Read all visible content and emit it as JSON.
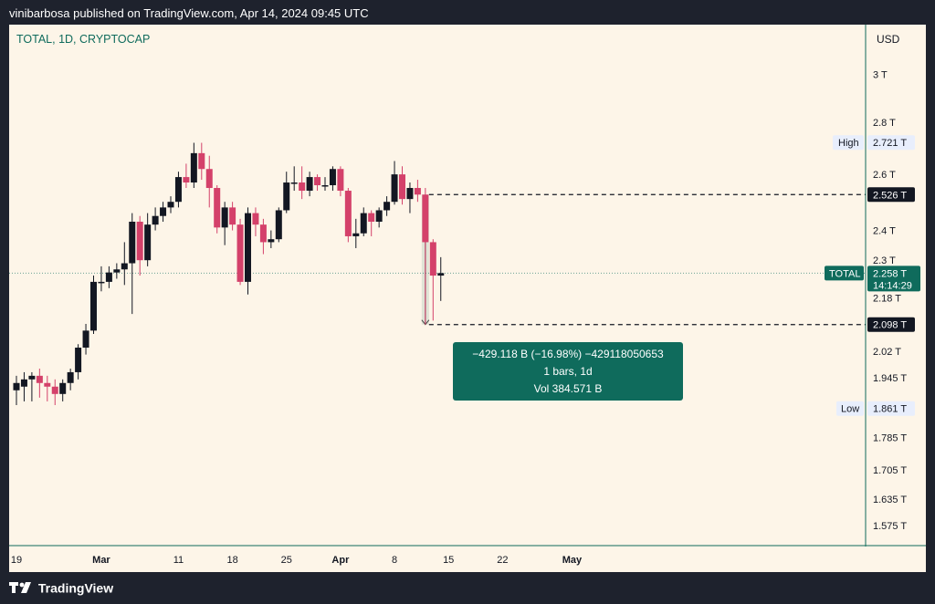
{
  "header": {
    "text": "vinibarbosa published on TradingView.com, Apr 14, 2024 09:45 UTC"
  },
  "symbol": {
    "label": "TOTAL, 1D, CRYPTOCAP"
  },
  "price_axis": {
    "currency": "USD"
  },
  "footer": {
    "brand": "TradingView"
  },
  "colors": {
    "up": "#131722",
    "down": "#d4416a",
    "background": "#fdf5e8",
    "accent": "#0f6b5c",
    "frame": "#1e222d"
  },
  "chart_data": {
    "type": "candlestick",
    "title": "TOTAL, 1D, CRYPTOCAP",
    "y_scale": "log",
    "ylim": [
      1.53,
      3.22
    ],
    "y_ticks": [
      {
        "v": 3.0,
        "label": "3 T"
      },
      {
        "v": 2.8,
        "label": "2.8 T"
      },
      {
        "v": 2.6,
        "label": "2.6 T"
      },
      {
        "v": 2.4,
        "label": "2.4 T"
      },
      {
        "v": 2.3,
        "label": "2.3 T"
      },
      {
        "v": 2.18,
        "label": "2.18 T"
      },
      {
        "v": 2.02,
        "label": "2.02 T"
      },
      {
        "v": 1.945,
        "label": "1.945 T"
      },
      {
        "v": 1.785,
        "label": "1.785 T"
      },
      {
        "v": 1.705,
        "label": "1.705 T"
      },
      {
        "v": 1.635,
        "label": "1.635 T"
      },
      {
        "v": 1.575,
        "label": "1.575 T"
      }
    ],
    "x_start": "2024-02-19",
    "x_ticks": [
      {
        "date": "2024-02-19",
        "label": "19"
      },
      {
        "date": "2024-03-01",
        "label": "Mar"
      },
      {
        "date": "2024-03-11",
        "label": "11"
      },
      {
        "date": "2024-03-18",
        "label": "18"
      },
      {
        "date": "2024-03-25",
        "label": "25"
      },
      {
        "date": "2024-04-01",
        "label": "Apr"
      },
      {
        "date": "2024-04-08",
        "label": "8"
      },
      {
        "date": "2024-04-15",
        "label": "15"
      },
      {
        "date": "2024-04-22",
        "label": "22"
      },
      {
        "date": "2024-05-01",
        "label": "May"
      }
    ],
    "candles": [
      {
        "date": "2024-02-19",
        "o": 1.91,
        "h": 1.95,
        "l": 1.87,
        "c": 1.93
      },
      {
        "date": "2024-02-20",
        "o": 1.92,
        "h": 1.96,
        "l": 1.88,
        "c": 1.94
      },
      {
        "date": "2024-02-21",
        "o": 1.94,
        "h": 1.96,
        "l": 1.88,
        "c": 1.95
      },
      {
        "date": "2024-02-22",
        "o": 1.95,
        "h": 1.97,
        "l": 1.89,
        "c": 1.93
      },
      {
        "date": "2024-02-23",
        "o": 1.93,
        "h": 1.95,
        "l": 1.88,
        "c": 1.92
      },
      {
        "date": "2024-02-24",
        "o": 1.92,
        "h": 1.94,
        "l": 1.87,
        "c": 1.9
      },
      {
        "date": "2024-02-25",
        "o": 1.9,
        "h": 1.94,
        "l": 1.88,
        "c": 1.93
      },
      {
        "date": "2024-02-26",
        "o": 1.93,
        "h": 1.97,
        "l": 1.91,
        "c": 1.96
      },
      {
        "date": "2024-02-27",
        "o": 1.96,
        "h": 2.04,
        "l": 1.94,
        "c": 2.03
      },
      {
        "date": "2024-02-28",
        "o": 2.03,
        "h": 2.1,
        "l": 2.01,
        "c": 2.08
      },
      {
        "date": "2024-02-29",
        "o": 2.08,
        "h": 2.25,
        "l": 2.07,
        "c": 2.23
      },
      {
        "date": "2024-03-01",
        "o": 2.23,
        "h": 2.28,
        "l": 2.2,
        "c": 2.23
      },
      {
        "date": "2024-03-02",
        "o": 2.23,
        "h": 2.28,
        "l": 2.21,
        "c": 2.26
      },
      {
        "date": "2024-03-03",
        "o": 2.26,
        "h": 2.29,
        "l": 2.24,
        "c": 2.27
      },
      {
        "date": "2024-03-04",
        "o": 2.27,
        "h": 2.36,
        "l": 2.22,
        "c": 2.29
      },
      {
        "date": "2024-03-05",
        "o": 2.29,
        "h": 2.46,
        "l": 2.13,
        "c": 2.43
      },
      {
        "date": "2024-03-06",
        "o": 2.43,
        "h": 2.45,
        "l": 2.25,
        "c": 2.3
      },
      {
        "date": "2024-03-07",
        "o": 2.3,
        "h": 2.46,
        "l": 2.28,
        "c": 2.42
      },
      {
        "date": "2024-03-08",
        "o": 2.42,
        "h": 2.48,
        "l": 2.4,
        "c": 2.45
      },
      {
        "date": "2024-03-09",
        "o": 2.45,
        "h": 2.5,
        "l": 2.43,
        "c": 2.48
      },
      {
        "date": "2024-03-10",
        "o": 2.48,
        "h": 2.52,
        "l": 2.46,
        "c": 2.5
      },
      {
        "date": "2024-03-11",
        "o": 2.5,
        "h": 2.61,
        "l": 2.48,
        "c": 2.59
      },
      {
        "date": "2024-03-12",
        "o": 2.59,
        "h": 2.64,
        "l": 2.55,
        "c": 2.57
      },
      {
        "date": "2024-03-13",
        "o": 2.57,
        "h": 2.72,
        "l": 2.55,
        "c": 2.68
      },
      {
        "date": "2024-03-14",
        "o": 2.68,
        "h": 2.72,
        "l": 2.58,
        "c": 2.62
      },
      {
        "date": "2024-03-15",
        "o": 2.62,
        "h": 2.67,
        "l": 2.48,
        "c": 2.55
      },
      {
        "date": "2024-03-16",
        "o": 2.55,
        "h": 2.56,
        "l": 2.39,
        "c": 2.41
      },
      {
        "date": "2024-03-17",
        "o": 2.41,
        "h": 2.5,
        "l": 2.35,
        "c": 2.48
      },
      {
        "date": "2024-03-18",
        "o": 2.48,
        "h": 2.5,
        "l": 2.4,
        "c": 2.42
      },
      {
        "date": "2024-03-19",
        "o": 2.42,
        "h": 2.44,
        "l": 2.22,
        "c": 2.23
      },
      {
        "date": "2024-03-20",
        "o": 2.23,
        "h": 2.48,
        "l": 2.19,
        "c": 2.46
      },
      {
        "date": "2024-03-21",
        "o": 2.46,
        "h": 2.48,
        "l": 2.38,
        "c": 2.42
      },
      {
        "date": "2024-03-22",
        "o": 2.42,
        "h": 2.44,
        "l": 2.32,
        "c": 2.36
      },
      {
        "date": "2024-03-23",
        "o": 2.36,
        "h": 2.4,
        "l": 2.34,
        "c": 2.37
      },
      {
        "date": "2024-03-24",
        "o": 2.37,
        "h": 2.48,
        "l": 2.36,
        "c": 2.47
      },
      {
        "date": "2024-03-25",
        "o": 2.47,
        "h": 2.61,
        "l": 2.46,
        "c": 2.57
      },
      {
        "date": "2024-03-26",
        "o": 2.57,
        "h": 2.63,
        "l": 2.54,
        "c": 2.57
      },
      {
        "date": "2024-03-27",
        "o": 2.57,
        "h": 2.63,
        "l": 2.51,
        "c": 2.54
      },
      {
        "date": "2024-03-28",
        "o": 2.54,
        "h": 2.61,
        "l": 2.52,
        "c": 2.59
      },
      {
        "date": "2024-03-29",
        "o": 2.59,
        "h": 2.6,
        "l": 2.54,
        "c": 2.56
      },
      {
        "date": "2024-03-30",
        "o": 2.56,
        "h": 2.59,
        "l": 2.54,
        "c": 2.56
      },
      {
        "date": "2024-03-31",
        "o": 2.56,
        "h": 2.63,
        "l": 2.54,
        "c": 2.62
      },
      {
        "date": "2024-04-01",
        "o": 2.62,
        "h": 2.63,
        "l": 2.52,
        "c": 2.54
      },
      {
        "date": "2024-04-02",
        "o": 2.54,
        "h": 2.55,
        "l": 2.36,
        "c": 2.38
      },
      {
        "date": "2024-04-03",
        "o": 2.38,
        "h": 2.44,
        "l": 2.34,
        "c": 2.39
      },
      {
        "date": "2024-04-04",
        "o": 2.39,
        "h": 2.48,
        "l": 2.38,
        "c": 2.46
      },
      {
        "date": "2024-04-05",
        "o": 2.46,
        "h": 2.47,
        "l": 2.38,
        "c": 2.43
      },
      {
        "date": "2024-04-06",
        "o": 2.43,
        "h": 2.48,
        "l": 2.41,
        "c": 2.47
      },
      {
        "date": "2024-04-07",
        "o": 2.47,
        "h": 2.52,
        "l": 2.45,
        "c": 2.5
      },
      {
        "date": "2024-04-08",
        "o": 2.5,
        "h": 2.65,
        "l": 2.49,
        "c": 2.6
      },
      {
        "date": "2024-04-09",
        "o": 2.6,
        "h": 2.63,
        "l": 2.49,
        "c": 2.51
      },
      {
        "date": "2024-04-10",
        "o": 2.51,
        "h": 2.57,
        "l": 2.46,
        "c": 2.55
      },
      {
        "date": "2024-04-11",
        "o": 2.55,
        "h": 2.58,
        "l": 2.5,
        "c": 2.526
      },
      {
        "date": "2024-04-12",
        "o": 2.526,
        "h": 2.55,
        "l": 2.098,
        "c": 2.36
      },
      {
        "date": "2024-04-13",
        "o": 2.36,
        "h": 2.37,
        "l": 2.11,
        "c": 2.25
      },
      {
        "date": "2024-04-14",
        "o": 2.25,
        "h": 2.31,
        "l": 2.17,
        "c": 2.258
      }
    ],
    "markers": {
      "high": {
        "label": "High",
        "value_label": "2.721 T",
        "value": 2.721
      },
      "low": {
        "label": "Low",
        "value_label": "1.861 T",
        "value": 1.861
      },
      "last": {
        "label": "TOTAL",
        "value_label": "2.258 T",
        "value": 2.258,
        "countdown": "14:14:29"
      },
      "range_top": {
        "value_label": "2.526 T",
        "value": 2.526
      },
      "range_bottom": {
        "value_label": "2.098 T",
        "value": 2.098
      }
    },
    "measure": {
      "from_date": "2024-04-12",
      "line1": "−429.118 B (−16.98%) −429118050653",
      "line2": "1 bars, 1d",
      "line3": "Vol 384.571 B"
    }
  }
}
